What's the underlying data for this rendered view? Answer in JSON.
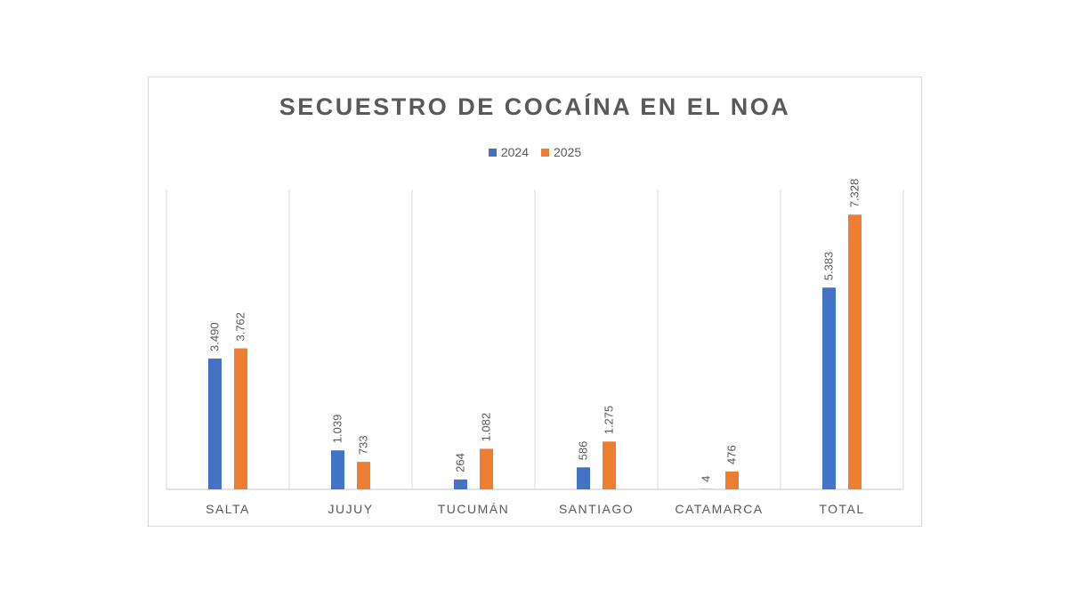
{
  "chart_data": {
    "type": "bar",
    "title": "SECUESTRO DE COCAÍNA EN EL NOA",
    "categories": [
      "SALTA",
      "JUJUY",
      "TUCUMÁN",
      "SANTIAGO",
      "CATAMARCA",
      "TOTAL"
    ],
    "series": [
      {
        "name": "2024",
        "color": "#4472c4",
        "values": [
          3490,
          1039,
          264,
          586,
          4,
          5383
        ],
        "labels": [
          "3.490",
          "1.039",
          "264",
          "586",
          "4",
          "5.383"
        ]
      },
      {
        "name": "2025",
        "color": "#ed7d31",
        "values": [
          3762,
          733,
          1082,
          1275,
          476,
          7328
        ],
        "labels": [
          "3.762",
          "733",
          "1.082",
          "1.275",
          "476",
          "7.328"
        ]
      }
    ],
    "xlabel": "",
    "ylabel": "",
    "ylim": [
      0,
      8000
    ],
    "legend_position": "top-center",
    "grid": "vertical category separators"
  }
}
